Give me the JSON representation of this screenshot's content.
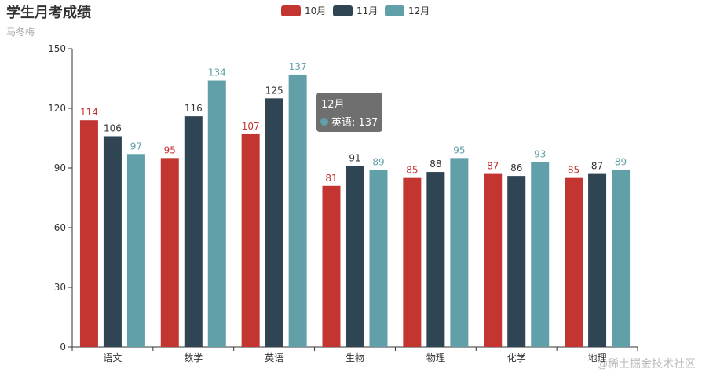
{
  "chart_data": {
    "type": "bar",
    "title": "学生月考成绩",
    "subtitle": "马冬梅",
    "categories": [
      "语文",
      "数学",
      "英语",
      "生物",
      "物理",
      "化学",
      "地理"
    ],
    "series": [
      {
        "name": "10月",
        "color": "#c23531",
        "values": [
          114,
          95,
          107,
          81,
          85,
          87,
          85
        ]
      },
      {
        "name": "11月",
        "color": "#2f4554",
        "values": [
          106,
          116,
          125,
          91,
          88,
          86,
          87
        ]
      },
      {
        "name": "12月",
        "color": "#61a0a8",
        "values": [
          97,
          134,
          137,
          89,
          95,
          93,
          89
        ]
      }
    ],
    "yticks": [
      0,
      30,
      60,
      90,
      120,
      150
    ],
    "ylim": [
      0,
      150
    ],
    "legend_position": "top-center",
    "grid": false,
    "tooltip": {
      "title": "12月",
      "text": "英语: 137",
      "color": "#61a0a8"
    }
  },
  "watermark": "@稀土掘金技术社区"
}
